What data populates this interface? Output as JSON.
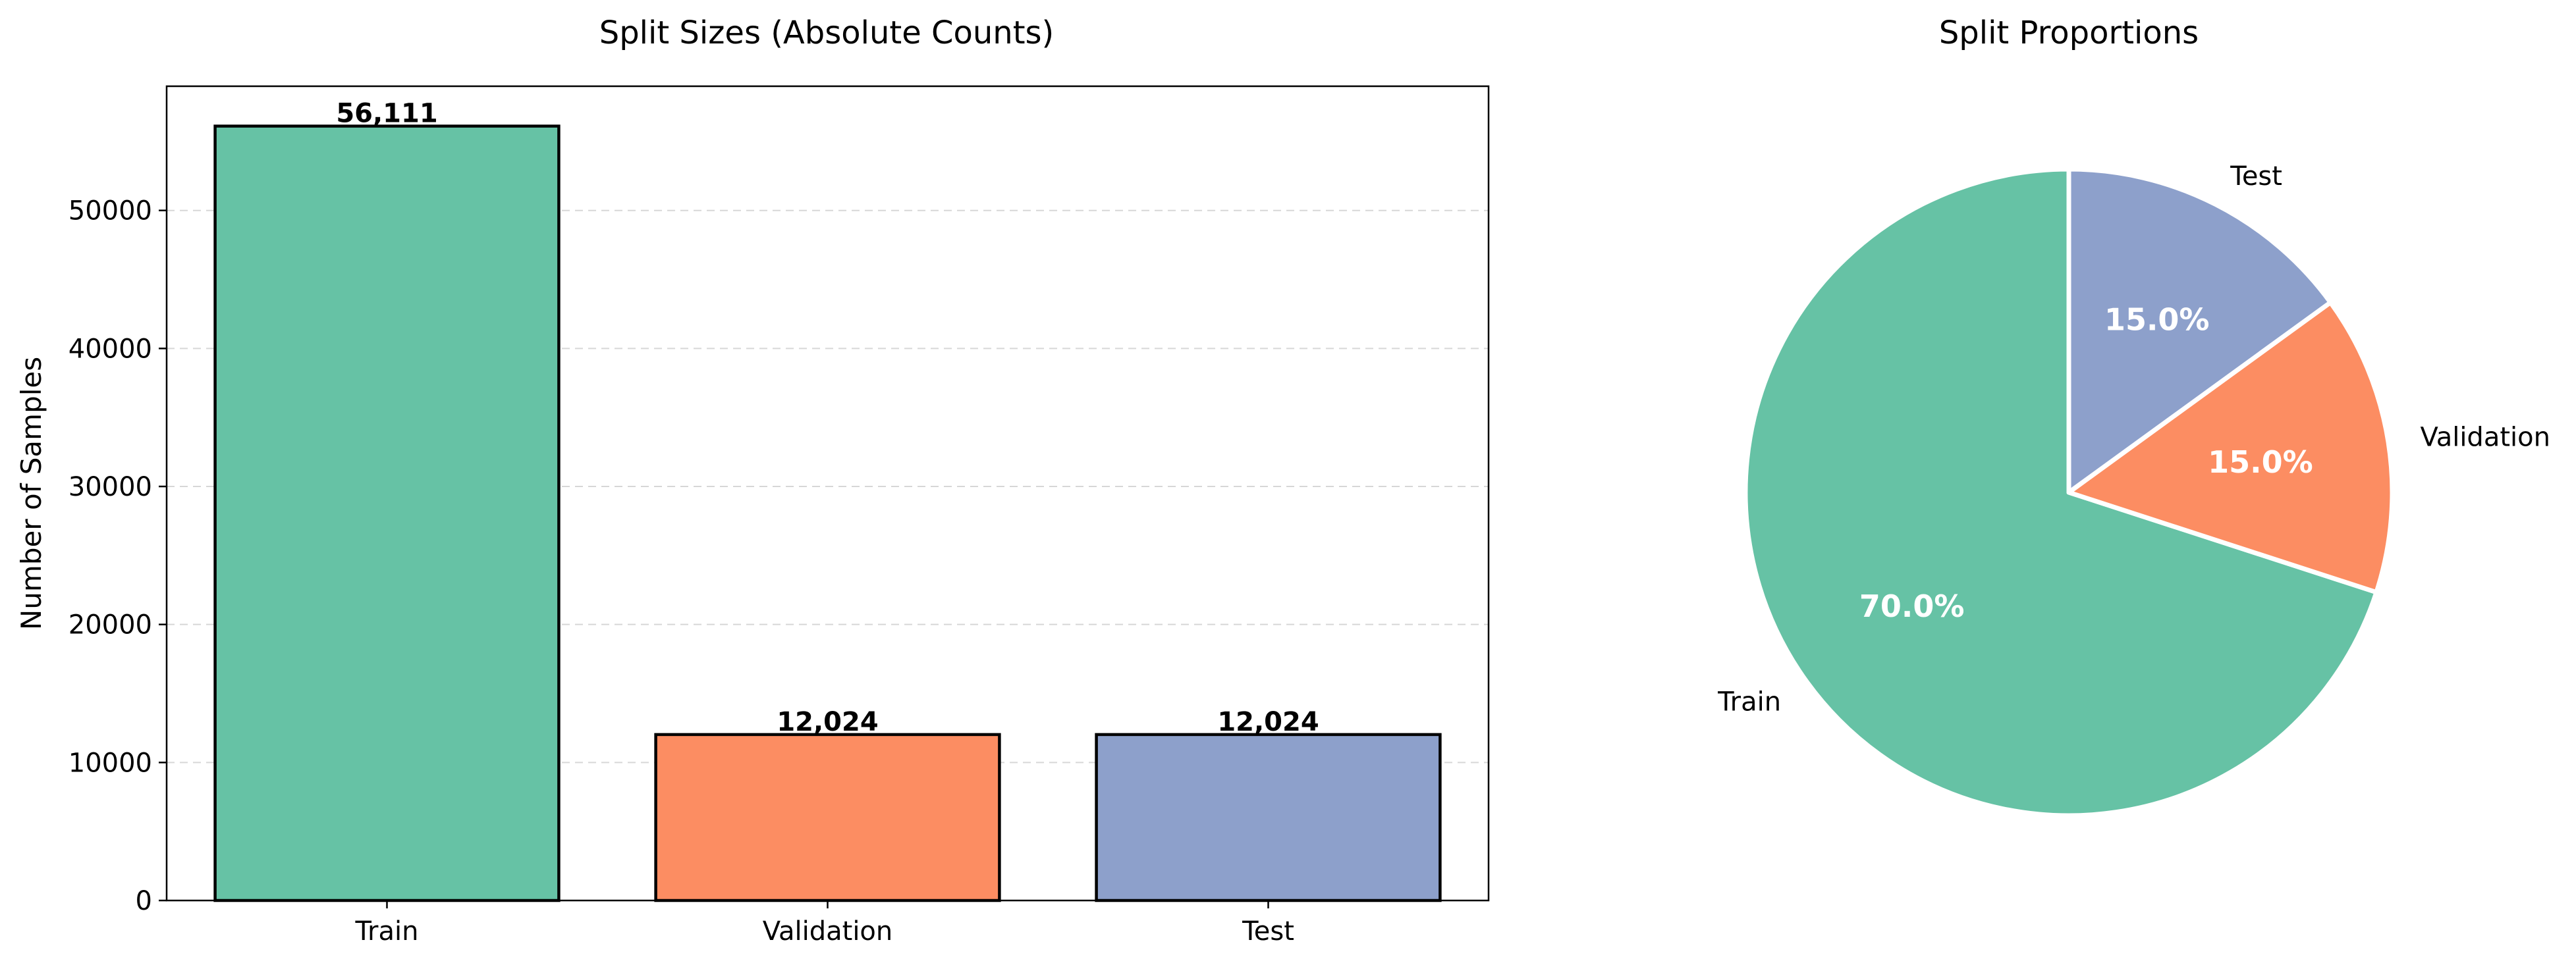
{
  "chart_data": [
    {
      "type": "bar",
      "title": "Split Sizes (Absolute Counts)",
      "xlabel": "",
      "ylabel": "Number of Samples",
      "categories": [
        "Train",
        "Validation",
        "Test"
      ],
      "values": [
        56111,
        12024,
        12024
      ],
      "value_labels": [
        "56,111",
        "12,024",
        "12,024"
      ],
      "colors": [
        "#66c2a5",
        "#fc8d62",
        "#8da0cb"
      ],
      "ylim": [
        0,
        59000
      ],
      "yticks": [
        0,
        10000,
        20000,
        30000,
        40000,
        50000
      ],
      "ytick_labels": [
        "0",
        "10000",
        "20000",
        "30000",
        "40000",
        "50000"
      ],
      "grid": "y, dashed"
    },
    {
      "type": "pie",
      "title": "Split Proportions",
      "labels": [
        "Train",
        "Validation",
        "Test"
      ],
      "values": [
        70.0,
        15.0,
        15.0
      ],
      "pct_labels": [
        "70.0%",
        "15.0%",
        "15.0%"
      ],
      "colors": [
        "#66c2a5",
        "#fc8d62",
        "#8da0cb"
      ],
      "start_angle": 90,
      "direction": "counterclockwise"
    }
  ]
}
